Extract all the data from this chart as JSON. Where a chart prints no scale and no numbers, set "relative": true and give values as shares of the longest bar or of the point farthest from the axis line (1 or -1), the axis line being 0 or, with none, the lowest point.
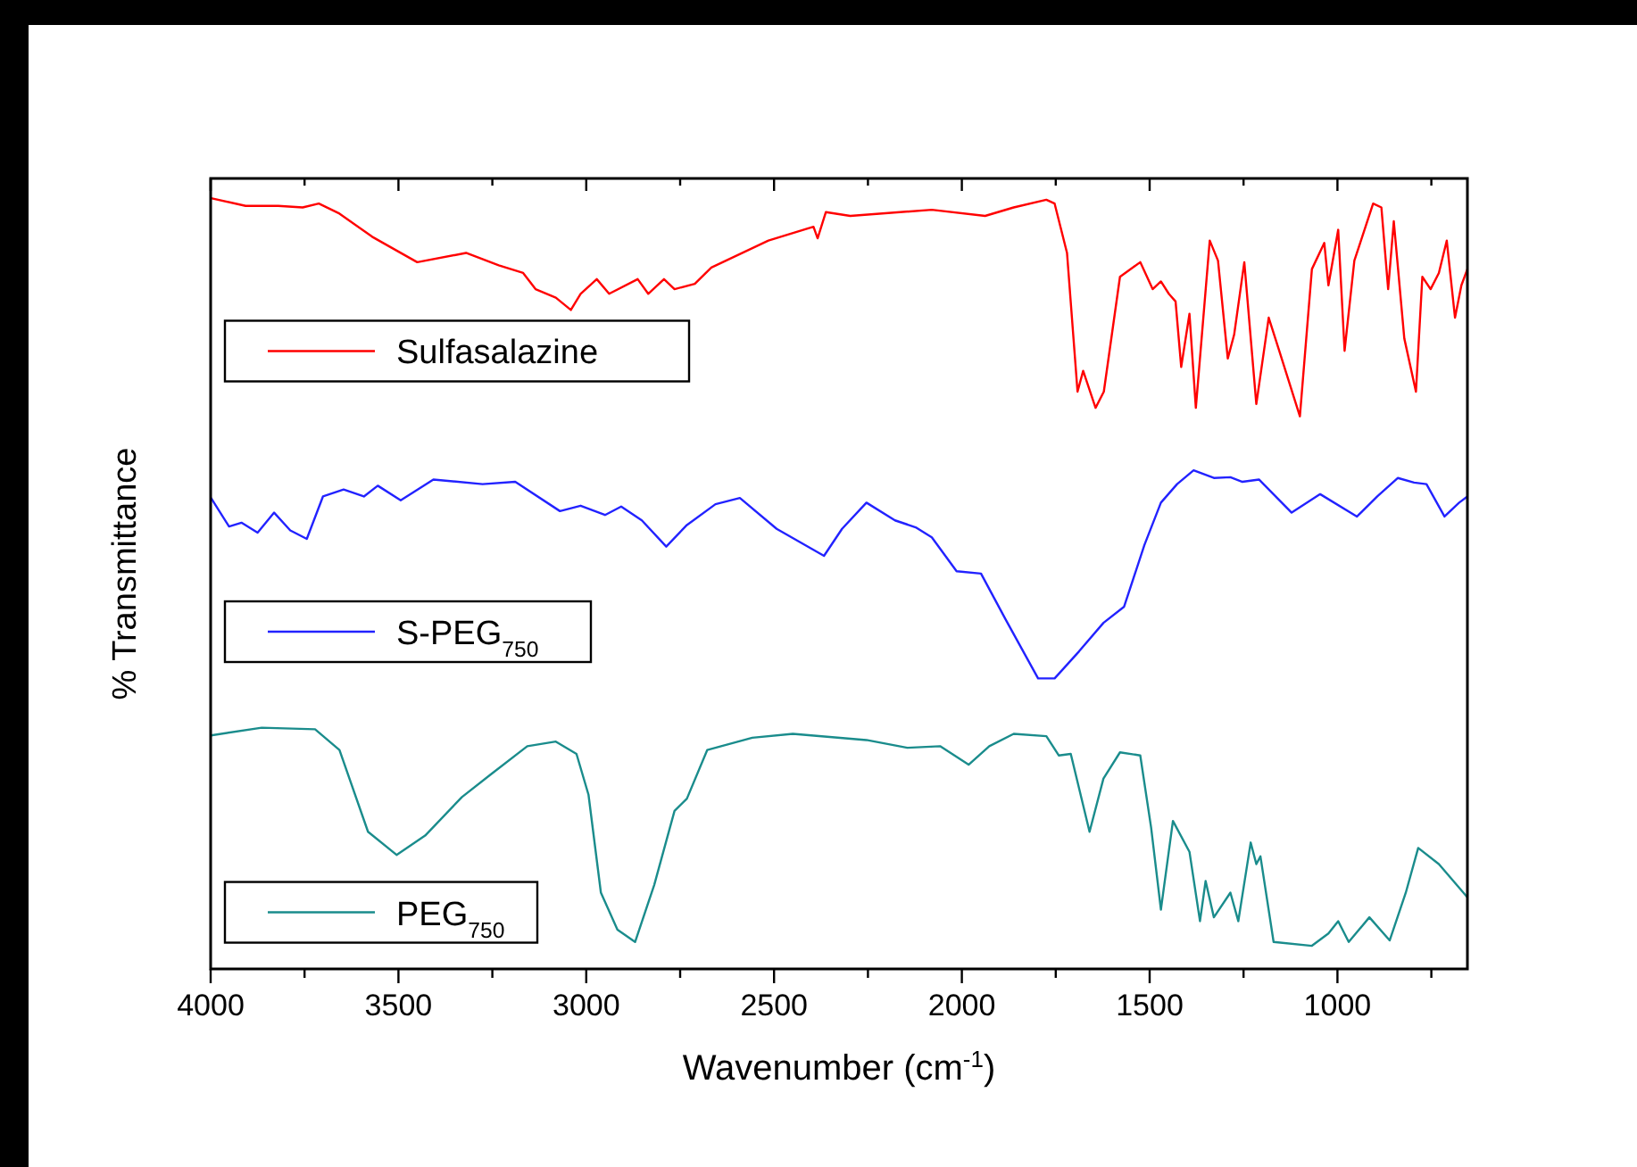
{
  "chart_data": {
    "type": "line",
    "relative": true,
    "xlabel": "Wavenumber (cm$^{-1}$)",
    "ylabel": "% Transmittance",
    "xlim": [
      4000,
      654
    ],
    "xticks": [
      4000,
      {
        "value": 3750,
        "label": null
      },
      3500,
      {
        "value": 3250,
        "label": null
      },
      3000,
      {
        "value": 2750,
        "label": null
      },
      2500,
      {
        "value": 2250,
        "label": null
      },
      2000,
      {
        "value": 1750,
        "label": null
      },
      1500,
      {
        "value": 1250,
        "label": null
      },
      1000,
      {
        "value": 750,
        "label": null
      }
    ],
    "tick_labels": "x",
    "legend": "left",
    "grid": false,
    "series": [
      {
        "name": "Sulfasalazine",
        "color": "#ff0000",
        "x": [
          3999,
          3907,
          3820,
          3755,
          3712,
          3657,
          3570,
          3450,
          3320,
          3233,
          3168,
          3135,
          3081,
          3041,
          3015,
          2972,
          2939,
          2863,
          2835,
          2793,
          2765,
          2711,
          2667,
          2515,
          2395,
          2384,
          2362,
          2297,
          2080,
          1938,
          1862,
          1775,
          1753,
          1720,
          1692,
          1677,
          1644,
          1622,
          1579,
          1525,
          1492,
          1470,
          1449,
          1431,
          1416,
          1394,
          1377,
          1340,
          1318,
          1292,
          1275,
          1248,
          1216,
          1183,
          1155,
          1100,
          1068,
          1035,
          1024,
          998,
          981,
          955,
          905,
          883,
          865,
          850,
          822,
          791,
          774,
          752,
          730,
          709,
          687,
          670,
          654
        ],
        "values": [
          1.0,
          0.99,
          0.99,
          0.988,
          0.993,
          0.98,
          0.95,
          0.917,
          0.929,
          0.913,
          0.903,
          0.882,
          0.871,
          0.855,
          0.876,
          0.895,
          0.876,
          0.895,
          0.876,
          0.895,
          0.882,
          0.889,
          0.91,
          0.945,
          0.963,
          0.948,
          0.982,
          0.977,
          0.985,
          0.977,
          0.988,
          0.998,
          0.993,
          0.929,
          0.749,
          0.776,
          0.728,
          0.749,
          0.898,
          0.917,
          0.882,
          0.892,
          0.876,
          0.866,
          0.781,
          0.85,
          0.728,
          0.945,
          0.919,
          0.792,
          0.823,
          0.917,
          0.733,
          0.845,
          0.802,
          0.717,
          0.908,
          0.942,
          0.887,
          0.959,
          0.802,
          0.919,
          0.993,
          0.988,
          0.882,
          0.97,
          0.818,
          0.749,
          0.898,
          0.882,
          0.903,
          0.945,
          0.845,
          0.887,
          0.908
        ]
      },
      {
        "name": "S-PEG$_{750}$",
        "color": "#2222ff",
        "x": [
          3999,
          3951,
          3918,
          3875,
          3831,
          3788,
          3744,
          3701,
          3646,
          3592,
          3555,
          3494,
          3407,
          3276,
          3189,
          3070,
          3015,
          2950,
          2907,
          2852,
          2787,
          2732,
          2656,
          2591,
          2493,
          2367,
          2319,
          2254,
          2178,
          2123,
          2080,
          2014,
          1949,
          1884,
          1797,
          1753,
          1688,
          1623,
          1568,
          1514,
          1470,
          1427,
          1383,
          1329,
          1285,
          1253,
          1209,
          1122,
          1046,
          948,
          894,
          839,
          796,
          763,
          715,
          676,
          654
        ],
        "values": [
          0.611,
          0.574,
          0.579,
          0.566,
          0.592,
          0.569,
          0.558,
          0.613,
          0.622,
          0.613,
          0.627,
          0.608,
          0.635,
          0.629,
          0.632,
          0.594,
          0.601,
          0.589,
          0.6,
          0.582,
          0.548,
          0.576,
          0.603,
          0.611,
          0.571,
          0.536,
          0.571,
          0.605,
          0.582,
          0.573,
          0.56,
          0.516,
          0.513,
          0.454,
          0.377,
          0.377,
          0.412,
          0.449,
          0.47,
          0.55,
          0.605,
          0.629,
          0.647,
          0.637,
          0.638,
          0.632,
          0.635,
          0.592,
          0.616,
          0.587,
          0.613,
          0.637,
          0.631,
          0.629,
          0.587,
          0.605,
          0.613
        ]
      },
      {
        "name": "PEG$_{750}$",
        "color": "#1a8c8c",
        "x": [
          3999,
          3864,
          3722,
          3657,
          3581,
          3505,
          3429,
          3331,
          3255,
          3157,
          3081,
          3026,
          2994,
          2961,
          2917,
          2870,
          2819,
          2765,
          2732,
          2678,
          2558,
          2450,
          2254,
          2145,
          2058,
          1982,
          1927,
          1862,
          1775,
          1742,
          1710,
          1660,
          1623,
          1579,
          1525,
          1496,
          1470,
          1438,
          1394,
          1366,
          1351,
          1329,
          1285,
          1264,
          1231,
          1216,
          1205,
          1170,
          1068,
          1024,
          998,
          970,
          915,
          861,
          818,
          785,
          730,
          654
        ],
        "values": [
          0.303,
          0.313,
          0.311,
          0.284,
          0.178,
          0.148,
          0.173,
          0.223,
          0.252,
          0.289,
          0.295,
          0.279,
          0.226,
          0.099,
          0.051,
          0.035,
          0.109,
          0.205,
          0.221,
          0.284,
          0.3,
          0.305,
          0.297,
          0.287,
          0.289,
          0.265,
          0.289,
          0.305,
          0.302,
          0.277,
          0.279,
          0.178,
          0.247,
          0.281,
          0.277,
          0.183,
          0.077,
          0.192,
          0.152,
          0.062,
          0.114,
          0.067,
          0.099,
          0.062,
          0.164,
          0.136,
          0.146,
          0.035,
          0.03,
          0.046,
          0.062,
          0.035,
          0.067,
          0.037,
          0.099,
          0.157,
          0.136,
          0.093
        ]
      }
    ]
  }
}
